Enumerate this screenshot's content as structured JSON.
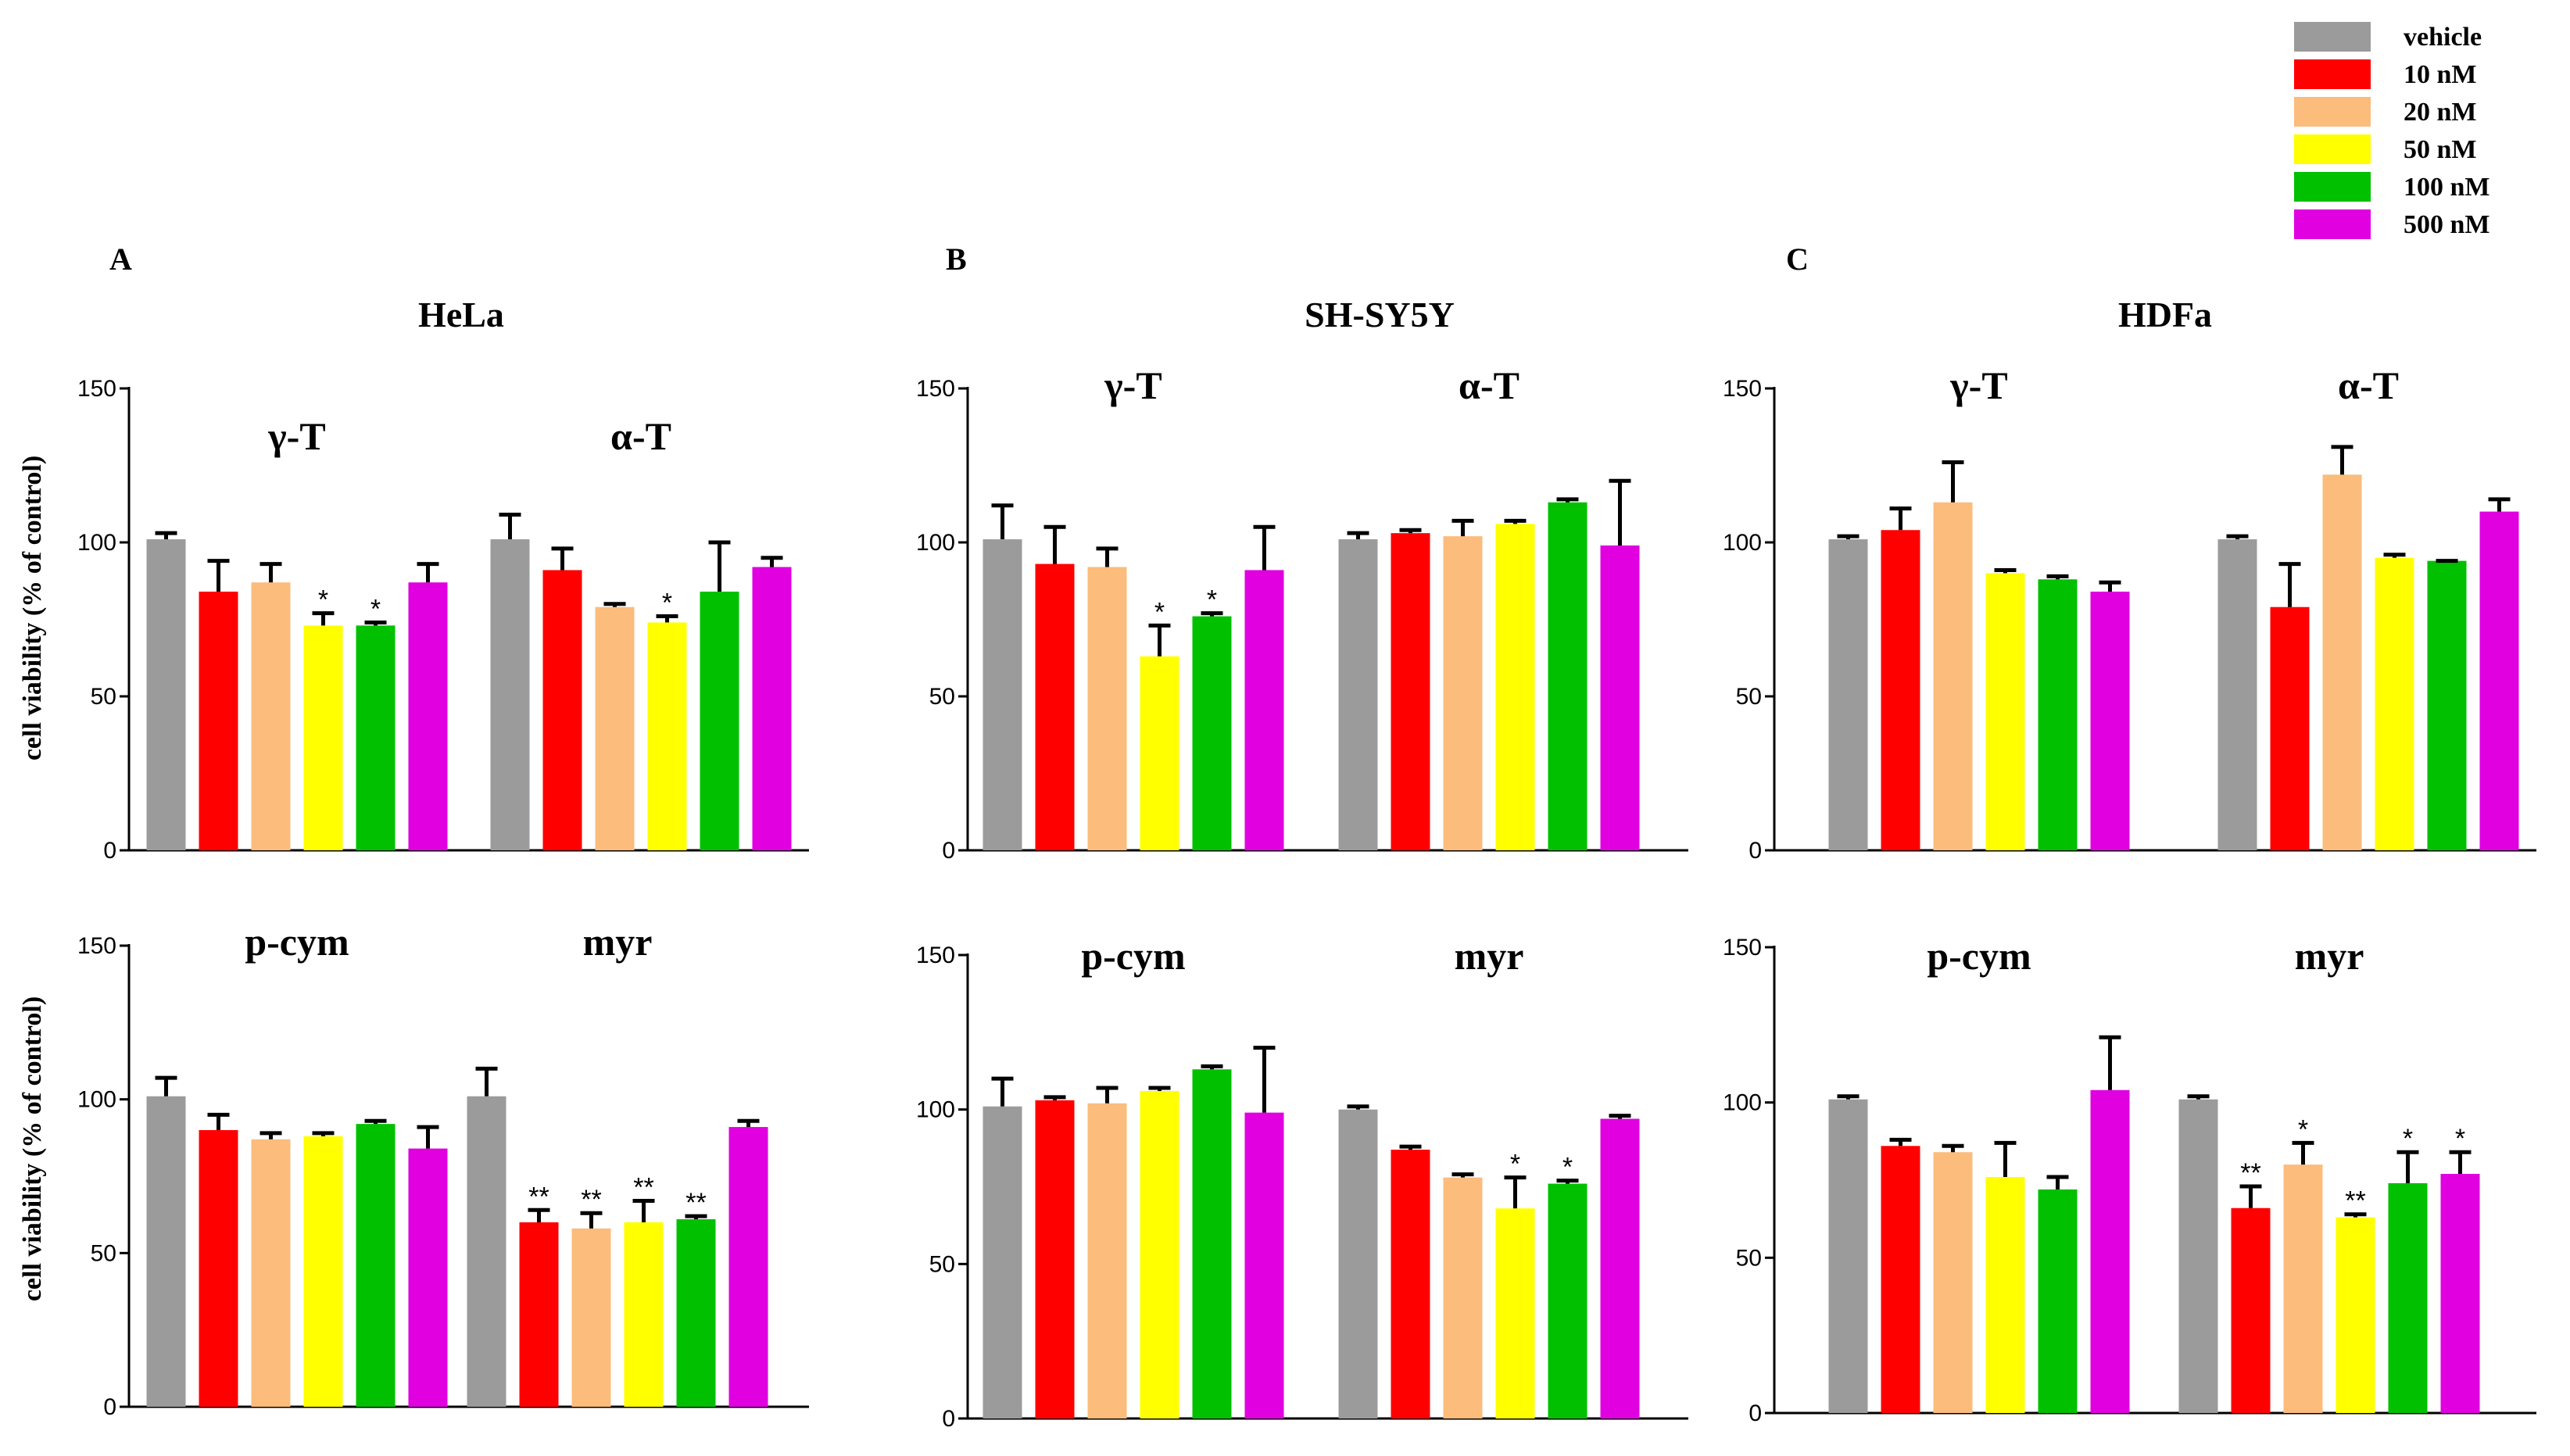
{
  "legend": {
    "entries": [
      {
        "label": "vehicle",
        "color": "#9b9b9b"
      },
      {
        "label": "10 nM",
        "color": "#ff0000"
      },
      {
        "label": "20 nM",
        "color": "#fbbc7c"
      },
      {
        "label": "50 nM",
        "color": "#ffff00"
      },
      {
        "label": "100 nM",
        "color": "#00c000"
      },
      {
        "label": "500 nM",
        "color": "#e000e0"
      }
    ]
  },
  "y_axis_label": "cell viability (% of control)",
  "chart_data": [
    {
      "type": "bar",
      "panel": "A",
      "cell_line": "HeLa",
      "row": "top",
      "ylabel": "cell viability (% of control)",
      "ylim": [
        0,
        150
      ],
      "yticks": [
        "0",
        "50",
        "100",
        "150"
      ],
      "groups": [
        {
          "label": "γ-T",
          "values": [
            101,
            84,
            87,
            73,
            73,
            87
          ],
          "errors": [
            2,
            10,
            6,
            4,
            1,
            6
          ],
          "sig": [
            "",
            "",
            "",
            "*",
            "*",
            ""
          ]
        },
        {
          "label": "α-T",
          "values": [
            101,
            91,
            79,
            74,
            84,
            92
          ],
          "errors": [
            8,
            7,
            1,
            2,
            16,
            3
          ],
          "sig": [
            "",
            "",
            "",
            "*",
            "",
            ""
          ]
        }
      ]
    },
    {
      "type": "bar",
      "panel": "A",
      "cell_line": "HeLa",
      "row": "bottom",
      "ylabel": "cell viability (% of control)",
      "ylim": [
        0,
        150
      ],
      "yticks": [
        "0",
        "50",
        "100",
        "150"
      ],
      "groups": [
        {
          "label": "p-cym",
          "values": [
            101,
            90,
            87,
            88,
            92,
            84
          ],
          "errors": [
            6,
            5,
            2,
            1,
            1,
            7
          ],
          "sig": [
            "",
            "",
            "",
            "",
            "",
            ""
          ]
        },
        {
          "label": "myr",
          "values": [
            101,
            60,
            58,
            60,
            61,
            91
          ],
          "errors": [
            9,
            4,
            5,
            7,
            1,
            2
          ],
          "sig": [
            "",
            "**",
            "**",
            "**",
            "**",
            ""
          ]
        }
      ]
    },
    {
      "type": "bar",
      "panel": "B",
      "cell_line": "SH-SY5Y",
      "row": "top",
      "ylim": [
        0,
        150
      ],
      "yticks": [
        "0",
        "50",
        "100",
        "150"
      ],
      "groups": [
        {
          "label": "γ-T",
          "values": [
            101,
            93,
            92,
            63,
            76,
            91
          ],
          "errors": [
            11,
            12,
            6,
            10,
            1,
            14
          ],
          "sig": [
            "",
            "",
            "",
            "*",
            "*",
            ""
          ]
        },
        {
          "label": "α-T",
          "values": [
            101,
            103,
            102,
            106,
            113,
            99
          ],
          "errors": [
            2,
            1,
            5,
            1,
            1,
            21
          ],
          "sig": [
            "",
            "",
            "",
            "",
            "",
            ""
          ]
        }
      ]
    },
    {
      "type": "bar",
      "panel": "B",
      "cell_line": "SH-SY5Y",
      "row": "bottom",
      "ylim": [
        0,
        150
      ],
      "yticks": [
        "0",
        "50",
        "100",
        "150"
      ],
      "groups": [
        {
          "label": "p-cym",
          "values": [
            101,
            103,
            102,
            106,
            113,
            99
          ],
          "errors": [
            9,
            1,
            5,
            1,
            1,
            21
          ],
          "sig": [
            "",
            "",
            "",
            "",
            "",
            ""
          ]
        },
        {
          "label": "myr",
          "values": [
            100,
            87,
            78,
            68,
            76,
            97
          ],
          "errors": [
            1,
            1,
            1,
            10,
            1,
            1
          ],
          "sig": [
            "",
            "",
            "",
            "*",
            "*",
            ""
          ]
        }
      ]
    },
    {
      "type": "bar",
      "panel": "C",
      "cell_line": "HDFa",
      "row": "top",
      "ylim": [
        0,
        150
      ],
      "yticks": [
        "0",
        "50",
        "100",
        "150"
      ],
      "groups": [
        {
          "label": "γ-T",
          "values": [
            101,
            104,
            113,
            90,
            88,
            84
          ],
          "errors": [
            1,
            7,
            13,
            1,
            1,
            3
          ],
          "sig": [
            "",
            "",
            "",
            "",
            "",
            ""
          ]
        },
        {
          "label": "α-T",
          "values": [
            101,
            79,
            122,
            95,
            94,
            110
          ],
          "errors": [
            1,
            14,
            9,
            1,
            0,
            4
          ],
          "sig": [
            "",
            "",
            "",
            "",
            "",
            ""
          ]
        }
      ]
    },
    {
      "type": "bar",
      "panel": "C",
      "cell_line": "HDFa",
      "row": "bottom",
      "ylim": [
        0,
        150
      ],
      "yticks": [
        "0",
        "50",
        "100",
        "150"
      ],
      "groups": [
        {
          "label": "p-cym",
          "values": [
            101,
            86,
            84,
            76,
            72,
            104
          ],
          "errors": [
            1,
            2,
            2,
            11,
            4,
            17
          ],
          "sig": [
            "",
            "",
            "",
            "",
            "",
            ""
          ]
        },
        {
          "label": "myr",
          "values": [
            101,
            66,
            80,
            63,
            74,
            77
          ],
          "errors": [
            1,
            7,
            7,
            1,
            10,
            7
          ],
          "sig": [
            "",
            "**",
            "*",
            "**",
            "*",
            "*"
          ]
        }
      ]
    }
  ]
}
